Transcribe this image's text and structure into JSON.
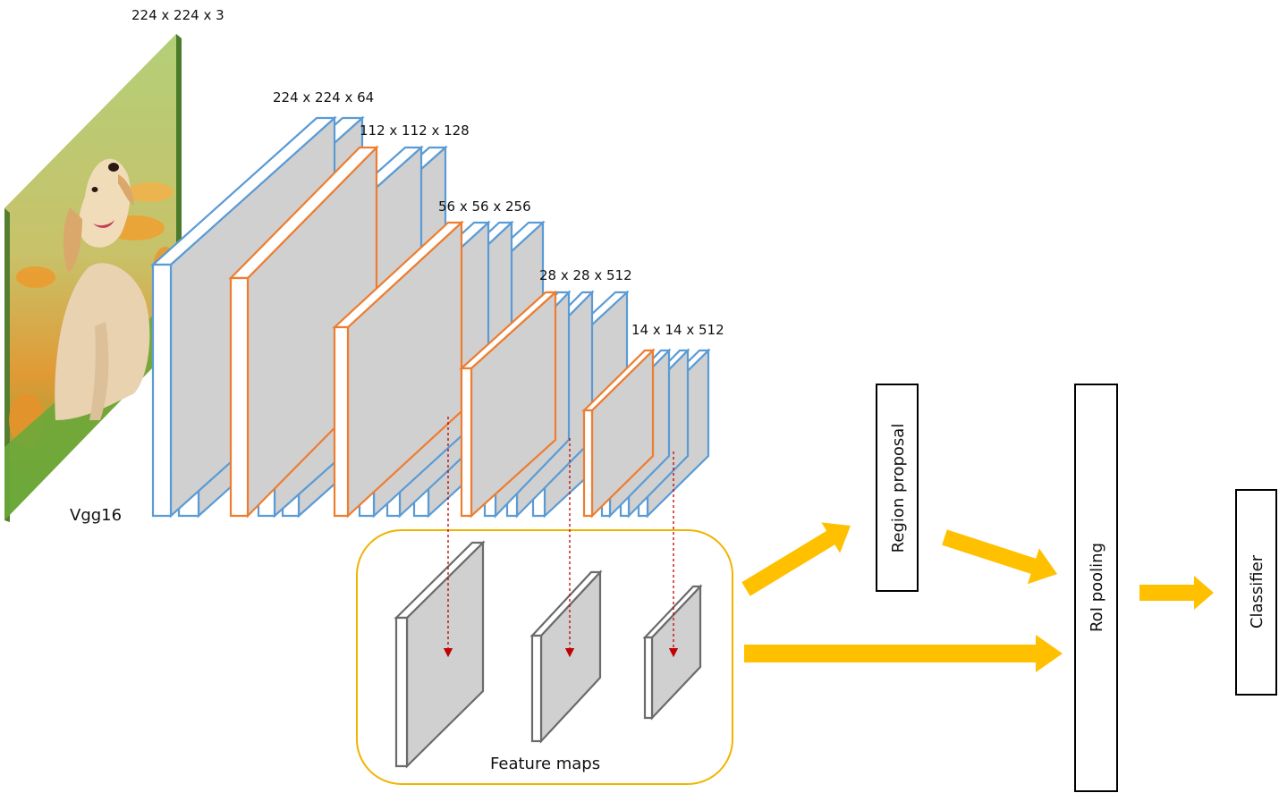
{
  "dims": {
    "input": "224 x 224 x 3",
    "block1": "224 x 224 x 64",
    "block2": "112 x 112 x 128",
    "block3": "56 x 56 x 256",
    "block4": "28 x 28 x 512",
    "block5": "14 x 14 x 512"
  },
  "labels": {
    "backbone": "Vgg16",
    "feature_maps": "Feature maps",
    "region_proposal": "Region proposal",
    "roi_pooling": "RoI pooling",
    "classifier": "Classifier"
  },
  "colors": {
    "conv_layer": "#5b9bd5",
    "pool_layer": "#ed7d31",
    "face_fill": "#d0d0d0",
    "feature_map_edge": "#6b6b6b",
    "arrow": "#ffc000",
    "feature_box_border": "#f0b400",
    "projection_arrow": "#c00000"
  }
}
